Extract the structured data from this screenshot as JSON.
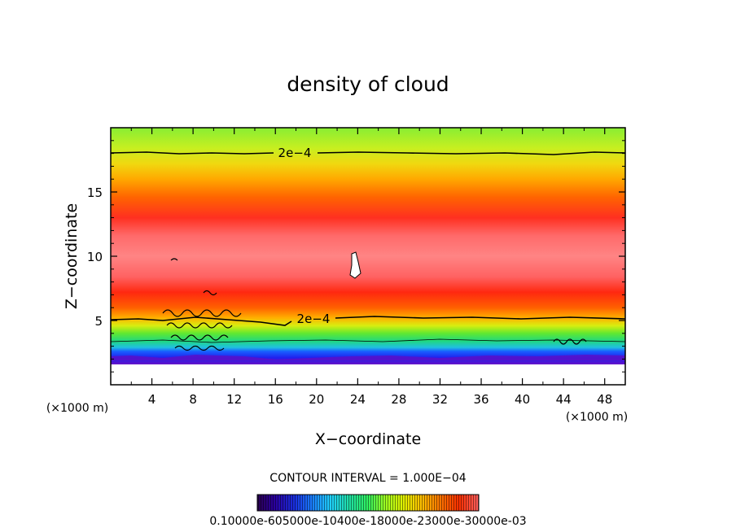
{
  "chart_data": {
    "type": "heatmap",
    "title": "density of cloud",
    "xlabel": "X−coordinate",
    "ylabel": "Z−coordinate",
    "x_unit": "(×1000 m)",
    "xlim": [
      0,
      50
    ],
    "ylim": [
      0,
      20
    ],
    "x_ticks": [
      "4",
      "8",
      "12",
      "16",
      "20",
      "24",
      "28",
      "32",
      "36",
      "40",
      "44",
      "48"
    ],
    "y_ticks": [
      "5",
      "10",
      "15"
    ],
    "contour_labels": [
      "2e−4",
      "2e−4"
    ],
    "contour_interval": "CONTOUR INTERVAL = 1.000E−04",
    "colorbar_labels": "0.10000e-605000e-10400e-18000e-23000e-30000e-03",
    "colorbar_colors": [
      "#2a0050",
      "#2a00a0",
      "#1a30e0",
      "#1a80ff",
      "#20d0ff",
      "#20e0a0",
      "#30f060",
      "#a0ff20",
      "#e0f000",
      "#ffc000",
      "#ff7a00",
      "#ff3000",
      "#ff6060"
    ],
    "field_colors": {
      "top": "#90ef3a",
      "core": "#ff8080",
      "edge": "#ff2000",
      "low_green": "#30e070",
      "base_blue": "#1040ff",
      "base_purple": "#6a10d0"
    }
  }
}
